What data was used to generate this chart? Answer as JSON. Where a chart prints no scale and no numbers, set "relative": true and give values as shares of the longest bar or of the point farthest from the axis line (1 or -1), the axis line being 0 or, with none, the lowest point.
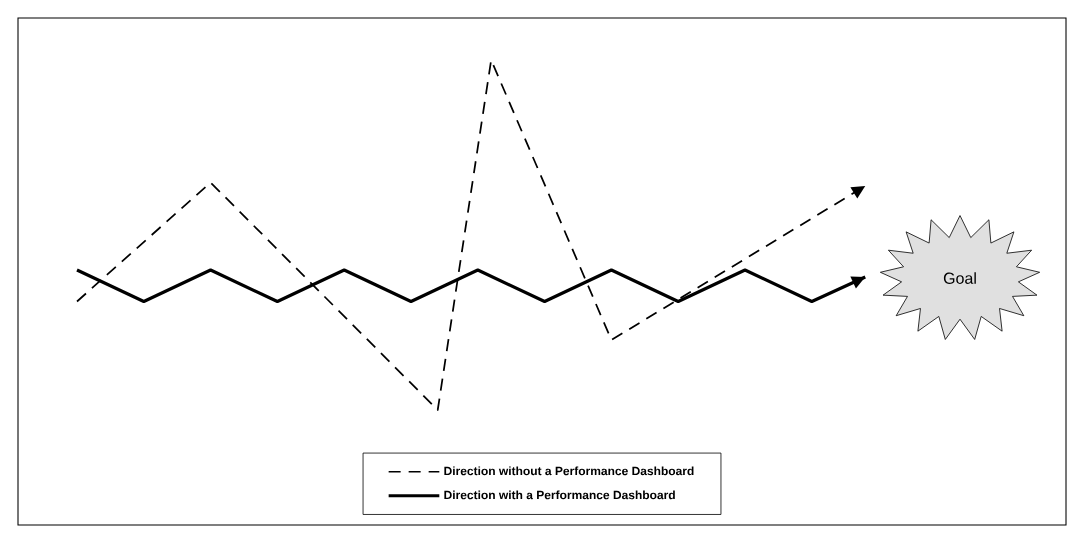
{
  "chart_data": {
    "type": "line",
    "relative": true,
    "legend": "bottom",
    "marker": "none",
    "categories": [
      null,
      null,
      null,
      null,
      null,
      null,
      null,
      null,
      null,
      null,
      null,
      null,
      null,
      null,
      null,
      null,
      null,
      null,
      null,
      null,
      null,
      null,
      null,
      null,
      null,
      null,
      null,
      null,
      null,
      null,
      null,
      null,
      null,
      null,
      null,
      null,
      null,
      null,
      null,
      null,
      null,
      null,
      null,
      null,
      null,
      null,
      null,
      null,
      null,
      null,
      null,
      null,
      null,
      null,
      null,
      null,
      null,
      null,
      null,
      null
    ],
    "series": [
      {
        "name": "Direction without a Performance Dashboard",
        "color": "#000000",
        "line_style": "dashed",
        "values": [
          0.31,
          null,
          null,
          null,
          null,
          null,
          null,
          null,
          null,
          null,
          0.65,
          null,
          null,
          null,
          null,
          null,
          null,
          null,
          null,
          null,
          null,
          null,
          null,
          null,
          null,
          null,
          null,
          0,
          null,
          null,
          null,
          1,
          null,
          null,
          null,
          null,
          null,
          null,
          null,
          null,
          0.2,
          null,
          null,
          null,
          null,
          null,
          null,
          null,
          null,
          null,
          null,
          null,
          null,
          null,
          null,
          null,
          null,
          null,
          null,
          0.64
        ]
      },
      {
        "name": "Direction with a Performance Dashboard",
        "color": "#000000",
        "line_style": "solid",
        "values": [
          0.4,
          null,
          null,
          null,
          null,
          0.31,
          null,
          null,
          null,
          null,
          0.4,
          null,
          null,
          null,
          null,
          0.31,
          null,
          null,
          null,
          null,
          0.4,
          null,
          null,
          null,
          null,
          0.31,
          null,
          null,
          null,
          null,
          0.4,
          null,
          null,
          null,
          null,
          0.31,
          null,
          null,
          null,
          null,
          0.4,
          null,
          null,
          null,
          null,
          0.31,
          null,
          null,
          null,
          null,
          0.4,
          null,
          null,
          null,
          null,
          0.31,
          null,
          null,
          null,
          0.38
        ]
      }
    ],
    "annotations": [
      "Goal"
    ]
  }
}
